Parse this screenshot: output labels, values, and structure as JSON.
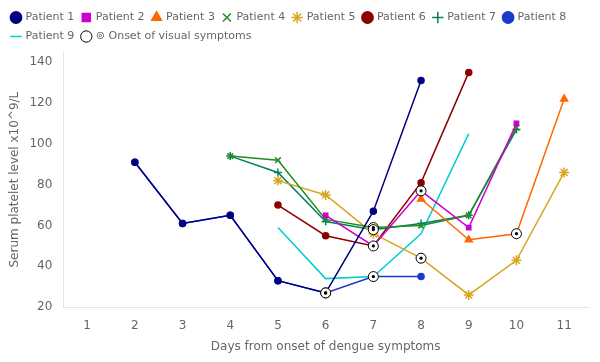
{
  "chart_data": {
    "type": "line",
    "xlabel": "Days from onset of dengue symptoms",
    "ylabel": "Serum platelet level x10^9/L",
    "xlim": [
      0.5,
      11.5
    ],
    "xticks": [
      1,
      2,
      3,
      4,
      5,
      6,
      7,
      8,
      9,
      10,
      11
    ],
    "ylim": [
      20,
      145
    ],
    "yticks": [
      20,
      40,
      60,
      80,
      100,
      120,
      140
    ],
    "grid": false,
    "legend": "upper left",
    "onset_label": "⊚ Onset of visual symptoms",
    "series": [
      {
        "name": "Patient 1",
        "color": "#000080",
        "marker": "circle",
        "x": [
          2,
          3,
          4,
          5,
          6,
          7,
          8
        ],
        "values": [
          91,
          61,
          65,
          33,
          27,
          67,
          131
        ],
        "visual_onset": [
          6
        ]
      },
      {
        "name": "Patient 2",
        "color": "#cc00cc",
        "marker": "square",
        "x": [
          6,
          7,
          8,
          9,
          10
        ],
        "values": [
          65,
          50,
          77,
          59,
          110
        ],
        "visual_onset": [
          8
        ]
      },
      {
        "name": "Patient 3",
        "color": "#ff6600",
        "marker": "triangle",
        "x": [
          8,
          9,
          10,
          11
        ],
        "values": [
          73,
          53,
          56,
          122
        ],
        "visual_onset": [
          10
        ]
      },
      {
        "name": "Patient 4",
        "color": "#228B22",
        "marker": "x",
        "x": [
          4,
          5,
          6,
          7,
          8,
          9,
          10
        ],
        "values": [
          94,
          92,
          63,
          59,
          60,
          65,
          108
        ],
        "visual_onset": [
          7
        ]
      },
      {
        "name": "Patient 5",
        "color": "#DAA520",
        "marker": "star",
        "x": [
          5,
          6,
          7,
          8,
          9,
          10,
          11
        ],
        "values": [
          82,
          75,
          56,
          44,
          26,
          43,
          86
        ],
        "visual_onset": [
          8
        ]
      },
      {
        "name": "Patient 6",
        "color": "#8B0000",
        "marker": "circle",
        "x": [
          5,
          6,
          7,
          8,
          9
        ],
        "values": [
          70,
          55,
          50,
          81,
          135
        ],
        "visual_onset": [
          7
        ]
      },
      {
        "name": "Patient 7",
        "color": "#008060",
        "marker": "plus",
        "x": [
          4,
          5,
          6,
          7,
          8,
          9,
          10
        ],
        "values": [
          94,
          86,
          62,
          58,
          61,
          65,
          107
        ],
        "visual_onset": [
          7
        ]
      },
      {
        "name": "Patient 8",
        "color": "#1a3acc",
        "marker": "circle",
        "x": [
          2,
          3,
          4,
          5,
          6,
          7,
          8
        ],
        "values": [
          91,
          61,
          65,
          33,
          27,
          35,
          35
        ],
        "visual_onset": [
          6
        ]
      },
      {
        "name": "Patient 9",
        "color": "#00CED1",
        "marker": "none",
        "x": [
          5,
          6,
          7,
          8,
          9
        ],
        "values": [
          59,
          34,
          35,
          56,
          105
        ],
        "visual_onset": [
          7
        ]
      }
    ]
  }
}
